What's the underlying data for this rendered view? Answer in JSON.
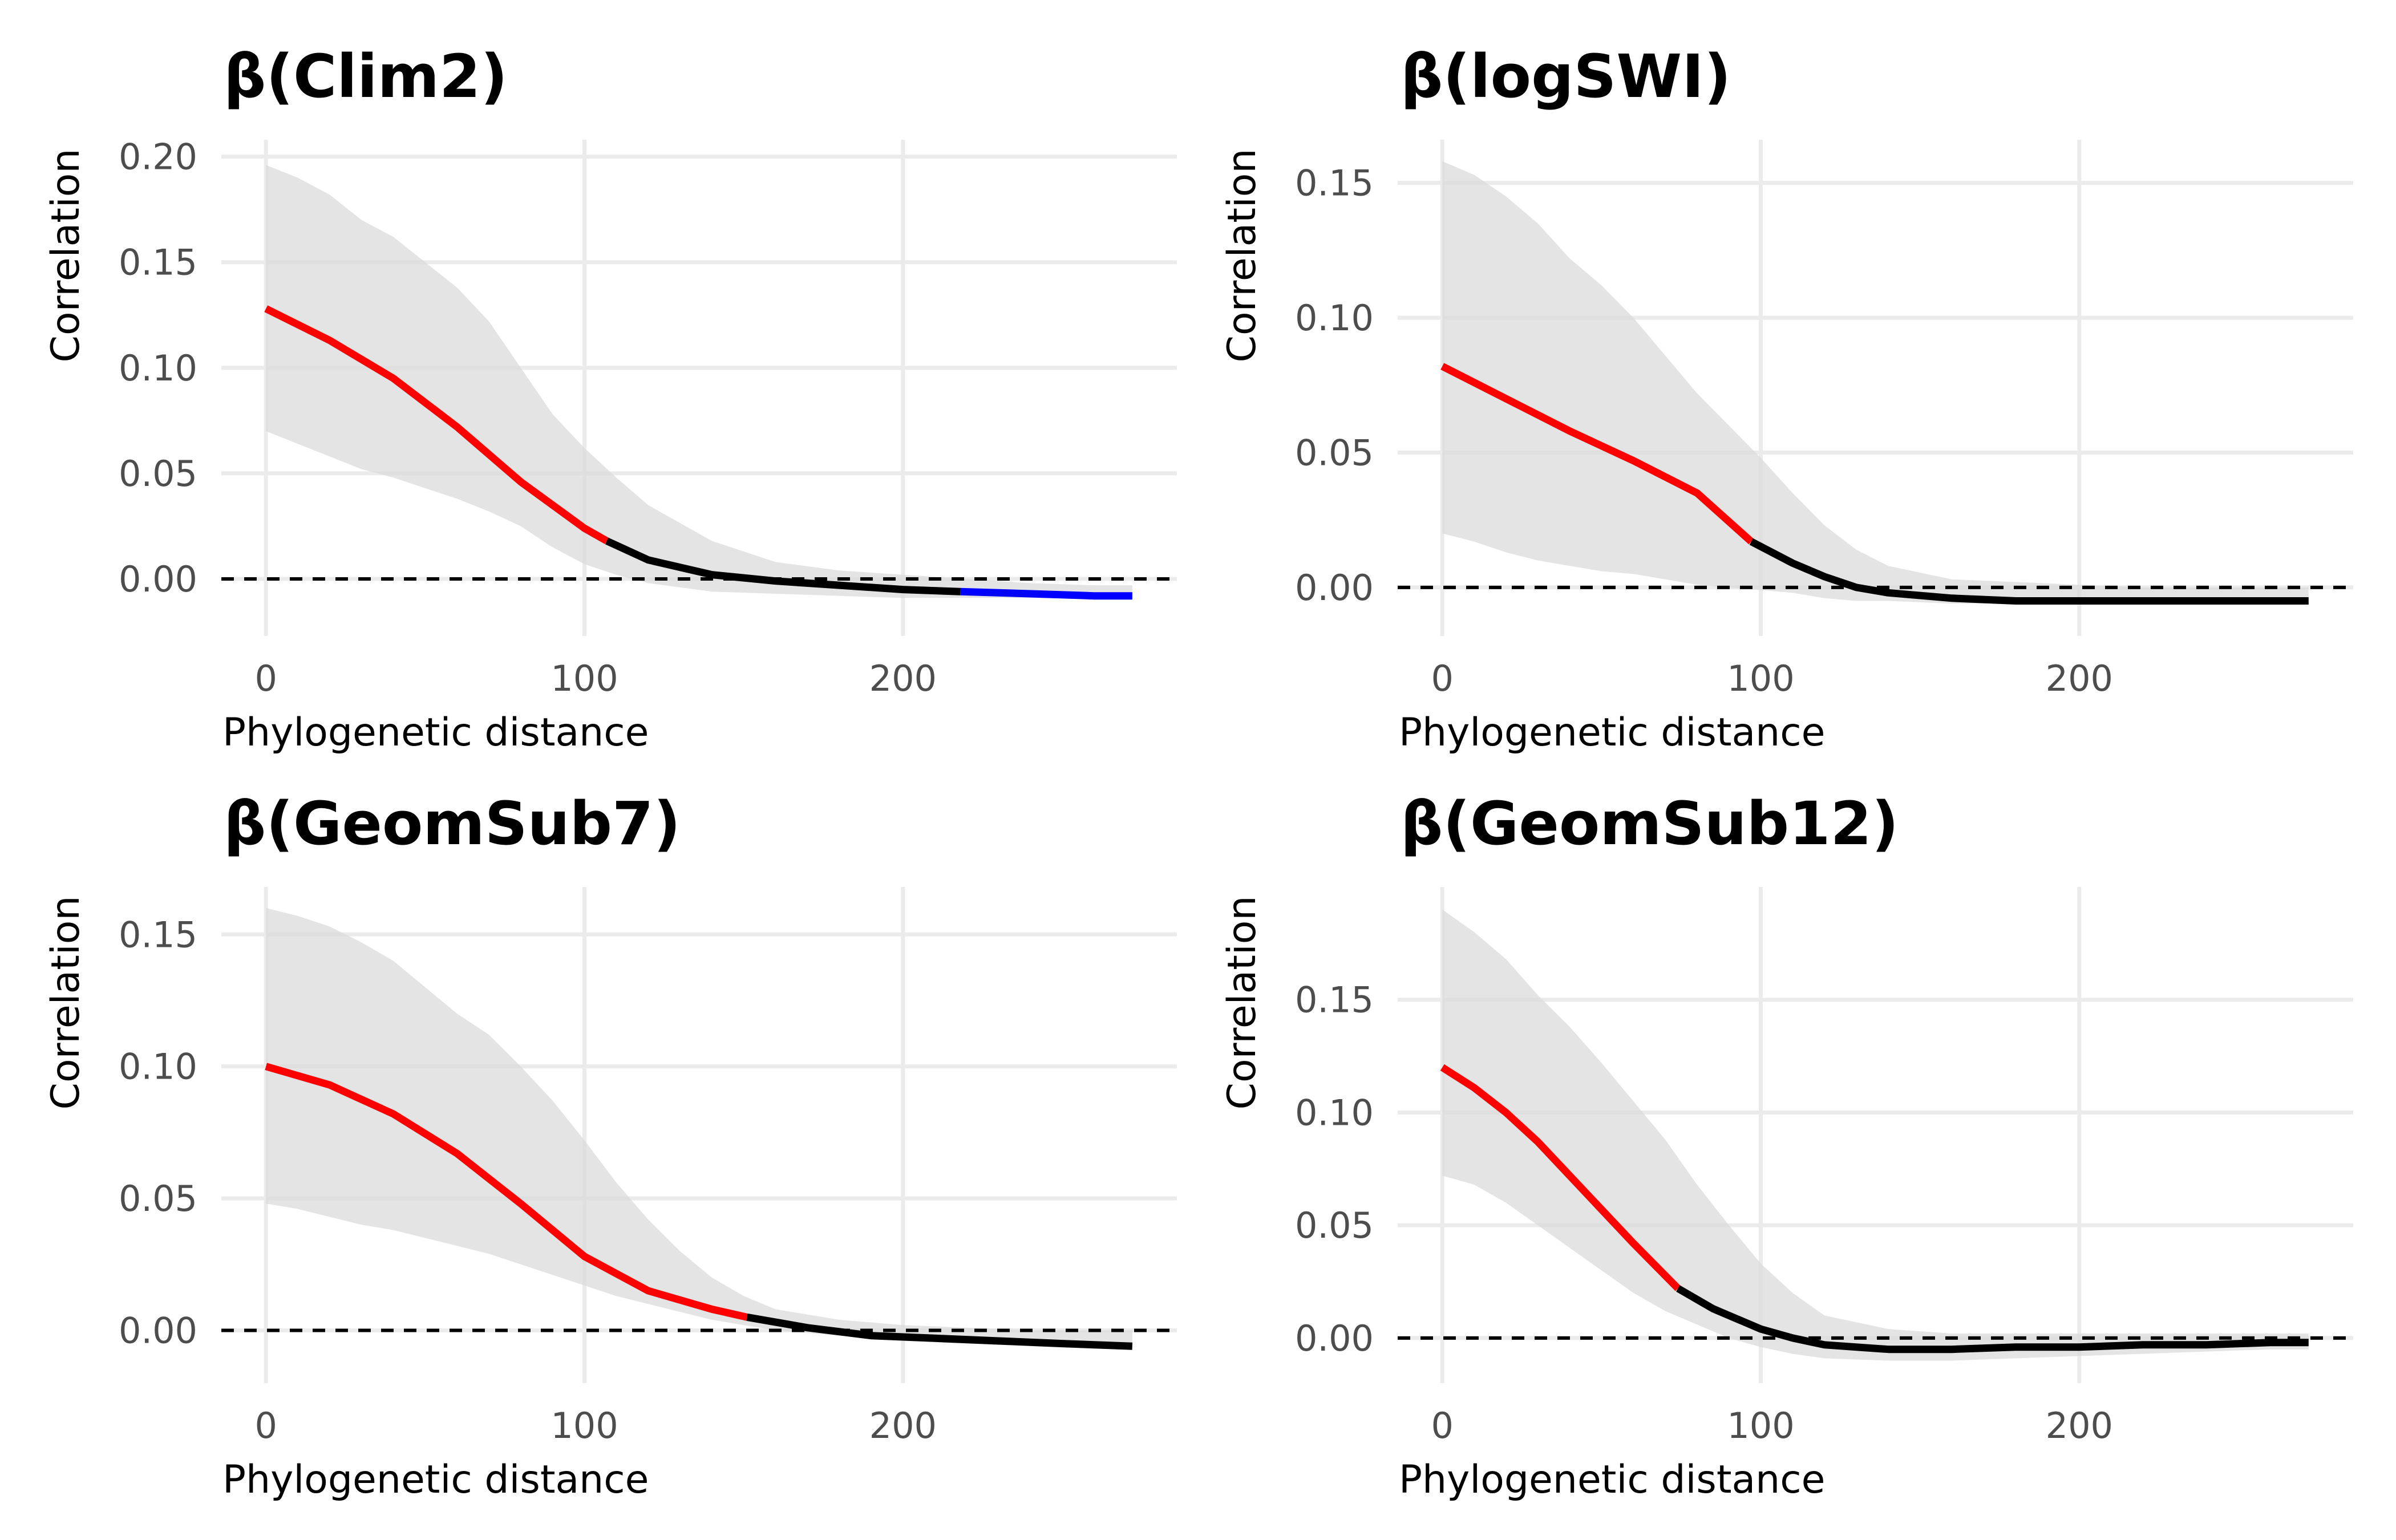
{
  "chart_data": [
    {
      "type": "line",
      "title": "β(Clim2)",
      "xlabel": "Phylogenetic distance",
      "ylabel": "Correlation",
      "xlim": [
        -14,
        286
      ],
      "ylim": [
        -0.027,
        0.208
      ],
      "x_ticks": [
        0,
        100,
        200
      ],
      "x_tick_labels": [
        "0",
        "100",
        "200"
      ],
      "y_ticks": [
        0,
        0.05,
        0.1,
        0.15,
        0.2
      ],
      "y_tick_labels": [
        "0.00",
        "0.05",
        "0.10",
        "0.15",
        "0.20"
      ],
      "reference_line": 0,
      "mean": {
        "x": [
          0,
          20,
          40,
          60,
          80,
          100,
          107,
          120,
          140,
          160,
          180,
          200,
          218,
          240,
          260,
          272
        ],
        "y": [
          0.128,
          0.113,
          0.095,
          0.072,
          0.046,
          0.024,
          0.018,
          0.009,
          0.002,
          -0.001,
          -0.003,
          -0.005,
          -0.006,
          -0.007,
          -0.008,
          -0.008
        ]
      },
      "band_x": [
        0,
        10,
        20,
        30,
        40,
        50,
        60,
        70,
        80,
        90,
        100,
        110,
        120,
        140,
        160,
        180,
        200,
        220,
        240,
        260,
        272
      ],
      "band_lower": [
        0.07,
        0.064,
        0.058,
        0.052,
        0.048,
        0.043,
        0.038,
        0.032,
        0.025,
        0.015,
        0.007,
        0.002,
        -0.002,
        -0.006,
        -0.007,
        -0.008,
        -0.009,
        -0.009,
        -0.009,
        -0.009,
        -0.009
      ],
      "band_upper": [
        0.196,
        0.19,
        0.182,
        0.17,
        0.162,
        0.15,
        0.138,
        0.122,
        0.1,
        0.078,
        0.062,
        0.048,
        0.035,
        0.018,
        0.008,
        0.004,
        0.002,
        0.0,
        -0.002,
        -0.003,
        -0.003
      ],
      "segments": [
        {
          "from": 0,
          "to": 107,
          "color": "#ff0000"
        },
        {
          "from": 107,
          "to": 218,
          "color": "#000000"
        },
        {
          "from": 218,
          "to": 272,
          "color": "#0000ff"
        }
      ]
    },
    {
      "type": "line",
      "title": "β(logSWI)",
      "xlabel": "Phylogenetic distance",
      "ylabel": "Correlation",
      "xlim": [
        -14,
        286
      ],
      "ylim": [
        -0.018,
        0.166
      ],
      "x_ticks": [
        0,
        100,
        200
      ],
      "x_tick_labels": [
        "0",
        "100",
        "200"
      ],
      "y_ticks": [
        0,
        0.05,
        0.1,
        0.15
      ],
      "y_tick_labels": [
        "0.00",
        "0.05",
        "0.10",
        "0.15"
      ],
      "reference_line": 0,
      "mean": {
        "x": [
          0,
          20,
          40,
          60,
          80,
          97,
          110,
          120,
          130,
          140,
          160,
          180,
          200,
          220,
          240,
          260,
          272
        ],
        "y": [
          0.082,
          0.07,
          0.058,
          0.047,
          0.035,
          0.017,
          0.009,
          0.004,
          0.0,
          -0.002,
          -0.004,
          -0.005,
          -0.005,
          -0.005,
          -0.005,
          -0.005,
          -0.005
        ]
      },
      "band_x": [
        0,
        10,
        20,
        30,
        40,
        50,
        60,
        70,
        80,
        90,
        100,
        110,
        120,
        130,
        140,
        160,
        180,
        200,
        220,
        240,
        260,
        272
      ],
      "band_lower": [
        0.02,
        0.017,
        0.013,
        0.01,
        0.008,
        0.006,
        0.005,
        0.003,
        0.001,
        0.0,
        -0.001,
        -0.002,
        -0.004,
        -0.005,
        -0.005,
        -0.006,
        -0.006,
        -0.006,
        -0.006,
        -0.006,
        -0.006,
        -0.006
      ],
      "band_upper": [
        0.158,
        0.153,
        0.145,
        0.135,
        0.122,
        0.112,
        0.1,
        0.086,
        0.072,
        0.06,
        0.048,
        0.035,
        0.023,
        0.014,
        0.008,
        0.003,
        0.002,
        0.001,
        0.0,
        0.0,
        0.0,
        0.0
      ],
      "segments": [
        {
          "from": 0,
          "to": 97,
          "color": "#ff0000"
        },
        {
          "from": 97,
          "to": 272,
          "color": "#000000"
        }
      ]
    },
    {
      "type": "line",
      "title": "β(GeomSub7)",
      "xlabel": "Phylogenetic distance",
      "ylabel": "Correlation",
      "xlim": [
        -14,
        286
      ],
      "ylim": [
        -0.02,
        0.168
      ],
      "x_ticks": [
        0,
        100,
        200
      ],
      "x_tick_labels": [
        "0",
        "100",
        "200"
      ],
      "y_ticks": [
        0,
        0.05,
        0.1,
        0.15
      ],
      "y_tick_labels": [
        "0.00",
        "0.05",
        "0.10",
        "0.15"
      ],
      "reference_line": 0,
      "mean": {
        "x": [
          0,
          20,
          40,
          60,
          80,
          100,
          120,
          140,
          151,
          170,
          190,
          210,
          230,
          250,
          272
        ],
        "y": [
          0.1,
          0.093,
          0.082,
          0.067,
          0.048,
          0.028,
          0.015,
          0.008,
          0.005,
          0.001,
          -0.002,
          -0.003,
          -0.004,
          -0.005,
          -0.006
        ]
      },
      "band_x": [
        0,
        10,
        20,
        30,
        40,
        50,
        60,
        70,
        80,
        90,
        100,
        110,
        120,
        130,
        140,
        150,
        160,
        180,
        200,
        220,
        240,
        260,
        272
      ],
      "band_lower": [
        0.048,
        0.046,
        0.043,
        0.04,
        0.038,
        0.035,
        0.032,
        0.029,
        0.025,
        0.021,
        0.017,
        0.013,
        0.01,
        0.007,
        0.004,
        0.002,
        0.0,
        -0.002,
        -0.004,
        -0.005,
        -0.006,
        -0.007,
        -0.007
      ],
      "band_upper": [
        0.16,
        0.157,
        0.153,
        0.147,
        0.14,
        0.13,
        0.12,
        0.112,
        0.1,
        0.087,
        0.072,
        0.056,
        0.042,
        0.03,
        0.02,
        0.013,
        0.008,
        0.004,
        0.002,
        0.001,
        0.0,
        0.0,
        0.0
      ],
      "segments": [
        {
          "from": 0,
          "to": 151,
          "color": "#ff0000"
        },
        {
          "from": 151,
          "to": 272,
          "color": "#000000"
        }
      ]
    },
    {
      "type": "line",
      "title": "β(GeomSub12)",
      "xlabel": "Phylogenetic distance",
      "ylabel": "Correlation",
      "xlim": [
        -14,
        286
      ],
      "ylim": [
        -0.02,
        0.2
      ],
      "x_ticks": [
        0,
        100,
        200
      ],
      "x_tick_labels": [
        "0",
        "100",
        "200"
      ],
      "y_ticks": [
        0,
        0.05,
        0.1,
        0.15
      ],
      "y_tick_labels": [
        "0.00",
        "0.05",
        "0.10",
        "0.15"
      ],
      "reference_line": 0,
      "mean": {
        "x": [
          0,
          10,
          20,
          30,
          40,
          50,
          60,
          74,
          85,
          100,
          110,
          120,
          140,
          160,
          180,
          200,
          220,
          240,
          260,
          272
        ],
        "y": [
          0.12,
          0.111,
          0.1,
          0.087,
          0.072,
          0.057,
          0.042,
          0.022,
          0.013,
          0.004,
          0.0,
          -0.003,
          -0.005,
          -0.005,
          -0.004,
          -0.004,
          -0.003,
          -0.003,
          -0.002,
          -0.002
        ]
      },
      "band_x": [
        0,
        10,
        20,
        30,
        40,
        50,
        60,
        70,
        80,
        90,
        100,
        110,
        120,
        140,
        160,
        180,
        200,
        220,
        240,
        260,
        272
      ],
      "band_lower": [
        0.072,
        0.068,
        0.06,
        0.05,
        0.04,
        0.03,
        0.02,
        0.012,
        0.006,
        0.0,
        -0.004,
        -0.007,
        -0.009,
        -0.01,
        -0.01,
        -0.009,
        -0.008,
        -0.007,
        -0.006,
        -0.005,
        -0.005
      ],
      "band_upper": [
        0.19,
        0.18,
        0.168,
        0.152,
        0.138,
        0.122,
        0.105,
        0.088,
        0.068,
        0.05,
        0.033,
        0.02,
        0.01,
        0.004,
        0.002,
        0.002,
        0.002,
        0.002,
        0.002,
        0.002,
        0.002
      ],
      "segments": [
        {
          "from": 0,
          "to": 74,
          "color": "#ff0000"
        },
        {
          "from": 74,
          "to": 272,
          "color": "#000000"
        }
      ]
    }
  ]
}
